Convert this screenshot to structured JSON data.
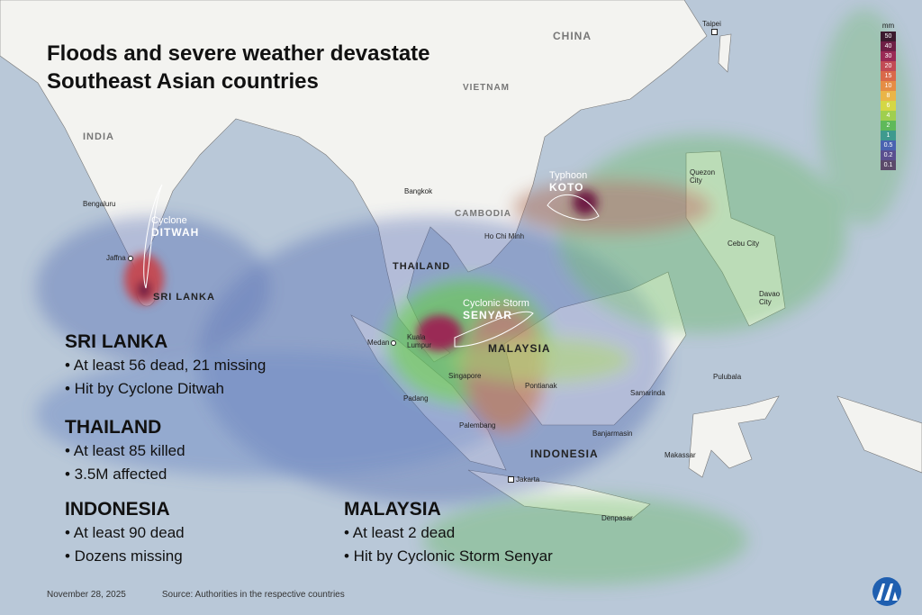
{
  "title": [
    "Floods and severe weather devastate",
    "Southeast Asian countries"
  ],
  "legend": {
    "unit": "mm",
    "steps": [
      {
        "label": "50",
        "color": "#3b1a2e"
      },
      {
        "label": "40",
        "color": "#6e1f45"
      },
      {
        "label": "30",
        "color": "#9a2a55"
      },
      {
        "label": "20",
        "color": "#c24b55"
      },
      {
        "label": "15",
        "color": "#d9694a"
      },
      {
        "label": "10",
        "color": "#e58d45"
      },
      {
        "label": "8",
        "color": "#e9b548"
      },
      {
        "label": "6",
        "color": "#d4d745"
      },
      {
        "label": "4",
        "color": "#9fcf4f"
      },
      {
        "label": "2",
        "color": "#5fb95a"
      },
      {
        "label": "1",
        "color": "#3e9a8e"
      },
      {
        "label": "0.5",
        "color": "#4a63b0"
      },
      {
        "label": "0.2",
        "color": "#5a4f8f"
      },
      {
        "label": "0.1",
        "color": "#5b4a6a"
      }
    ]
  },
  "countries": {
    "china": "CHINA",
    "vietnam": "VIETNAM",
    "india": "INDIA",
    "cambodia": "CAMBODIA",
    "thailand": "THAILAND",
    "sri_lanka": "SRI LANKA",
    "malaysia": "MALAYSIA",
    "indonesia": "INDONESIA"
  },
  "cities": {
    "taipei": "Taipei",
    "bengaluru": "Bengaluru",
    "jaffna": "Jaffna",
    "bangkok": "Bangkok",
    "ho_chi_minh": "Ho Chi Minh",
    "quezon": "Quezon City",
    "cebu": "Cebu City",
    "davao": "Davao City",
    "medan": "Medan",
    "kuala_lumpur": "Kuala Lumpur",
    "singapore": "Singapore",
    "padang": "Padang",
    "pontianak": "Pontianak",
    "palembang": "Palembang",
    "banjarmasin": "Banjarmasin",
    "samarinda": "Samarinda",
    "pulubala": "Pulubala",
    "makassar": "Makassar",
    "jakarta": "Jakarta",
    "denpasar": "Denpasar"
  },
  "storms": [
    {
      "type": "Cyclone",
      "name": "DITWAH"
    },
    {
      "type": "Typhoon",
      "name": "KOTO"
    },
    {
      "type": "Cyclonic Storm",
      "name": "SENYAR"
    }
  ],
  "panels": [
    {
      "heading": "SRI LANKA",
      "items": [
        "• At least 56 dead, 21 missing",
        "• Hit by Cyclone Ditwah"
      ]
    },
    {
      "heading": "THAILAND",
      "items": [
        "• At least 85 killed",
        "• 3.5M affected"
      ]
    },
    {
      "heading": "INDONESIA",
      "items": [
        "• At least 90 dead",
        "• Dozens missing"
      ]
    },
    {
      "heading": "MALAYSIA",
      "items": [
        "• At least 2 dead",
        "• Hit by Cyclonic Storm Senyar"
      ]
    }
  ],
  "footer": {
    "date": "November 28, 2025",
    "source": "Source: Authorities in the respective countries"
  },
  "colors": {
    "sea": "#b9c8d8",
    "land": "#f3f3f0"
  }
}
